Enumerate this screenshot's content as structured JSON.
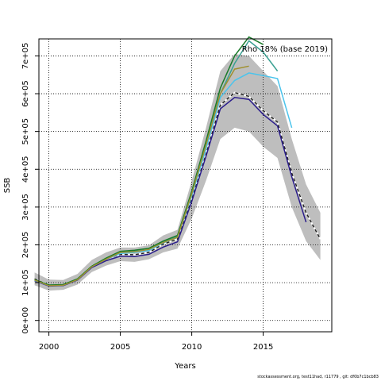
{
  "chart_data": {
    "type": "line",
    "title": "",
    "annotation": "Rho 18% (base 2019)",
    "xlabel": "Years",
    "ylabel": "SSB",
    "xlim": [
      1999.3,
      2019.8
    ],
    "ylim": [
      -30000,
      745000
    ],
    "x_ticks": [
      2000,
      2005,
      2010,
      2015
    ],
    "x_tick_labels": [
      "2000",
      "2005",
      "2010",
      "2015"
    ],
    "y_ticks": [
      0,
      100000,
      200000,
      300000,
      400000,
      500000,
      600000,
      700000
    ],
    "y_tick_labels": [
      "0e+00",
      "1e+05",
      "2e+05",
      "3e+05",
      "4e+05",
      "5e+05",
      "6e+05",
      "7e+05"
    ],
    "grid": "dotted",
    "legend": "none",
    "band": {
      "color": "#bebebe",
      "x": [
        1999,
        2000,
        2001,
        2002,
        2003,
        2004,
        2005,
        2006,
        2007,
        2008,
        2009,
        2010,
        2011,
        2012,
        2013,
        2014,
        2015,
        2016,
        2017,
        2018,
        2019
      ],
      "upper": [
        127000,
        108000,
        107000,
        123000,
        160000,
        180000,
        193000,
        193000,
        199000,
        225000,
        240000,
        370000,
        510000,
        660000,
        705000,
        700000,
        660000,
        620000,
        480000,
        360000,
        285000
      ],
      "lower": [
        93000,
        79000,
        81000,
        95000,
        128000,
        145000,
        157000,
        155000,
        162000,
        180000,
        190000,
        270000,
        370000,
        480000,
        510000,
        500000,
        460000,
        430000,
        300000,
        210000,
        160000
      ]
    },
    "series": [
      {
        "color": "#222222",
        "dashed": true,
        "width": 1.5,
        "x": [
          1999,
          2000,
          2001,
          2002,
          2003,
          2004,
          2005,
          2006,
          2007,
          2008,
          2009,
          2010,
          2011,
          2012,
          2013,
          2014,
          2015,
          2016,
          2017,
          2018,
          2019
        ],
        "values": [
          110000,
          93000,
          94000,
          109000,
          144000,
          163000,
          175000,
          174000,
          180000,
          202000,
          215000,
          320000,
          440000,
          570000,
          603000,
          593000,
          555000,
          525000,
          390000,
          285000,
          215000
        ]
      },
      {
        "color": "#2b1d8c",
        "dashed": false,
        "width": 1.5,
        "x": [
          1999,
          2000,
          2001,
          2002,
          2003,
          2004,
          2005,
          2006,
          2007,
          2008,
          2009,
          2010,
          2011,
          2012,
          2013,
          2014,
          2015,
          2016,
          2017,
          2018
        ],
        "values": [
          105000,
          91000,
          92000,
          107000,
          140000,
          158000,
          170000,
          169000,
          175000,
          194000,
          208000,
          315000,
          435000,
          560000,
          590000,
          585000,
          545000,
          515000,
          380000,
          260000
        ]
      },
      {
        "color": "#4bc4ec",
        "dashed": false,
        "width": 1.5,
        "x": [
          1999,
          2000,
          2001,
          2002,
          2003,
          2004,
          2005,
          2006,
          2007,
          2008,
          2009,
          2010,
          2011,
          2012,
          2013,
          2014,
          2015,
          2016,
          2017
        ],
        "values": [
          106000,
          92000,
          93000,
          108000,
          142000,
          162000,
          177000,
          180000,
          185000,
          205000,
          220000,
          330000,
          455000,
          590000,
          635000,
          655000,
          648000,
          640000,
          510000
        ]
      },
      {
        "color": "#3aa092",
        "dashed": false,
        "width": 1.5,
        "x": [
          1999,
          2000,
          2001,
          2002,
          2003,
          2004,
          2005,
          2006,
          2007,
          2008,
          2009,
          2010,
          2011,
          2012,
          2013,
          2014,
          2015,
          2016
        ],
        "values": [
          107000,
          93000,
          94000,
          109000,
          143000,
          163000,
          180000,
          183000,
          188000,
          208000,
          222000,
          335000,
          465000,
          600000,
          680000,
          740000,
          710000,
          660000
        ]
      },
      {
        "color": "#1a7a2a",
        "dashed": false,
        "width": 1.5,
        "x": [
          1999,
          2000,
          2001,
          2002,
          2003,
          2004,
          2005,
          2006,
          2007,
          2008,
          2009,
          2010,
          2011,
          2012,
          2013,
          2014,
          2015
        ],
        "values": [
          108000,
          94000,
          95000,
          110000,
          144000,
          165000,
          183000,
          186000,
          191000,
          210000,
          225000,
          342000,
          475000,
          615000,
          700000,
          750000,
          730000
        ]
      },
      {
        "color": "#a09030",
        "dashed": false,
        "width": 1.5,
        "x": [
          1999,
          2000,
          2001,
          2002,
          2003,
          2004,
          2005,
          2006,
          2007,
          2008,
          2009,
          2010,
          2011,
          2012,
          2013,
          2014
        ],
        "values": [
          107000,
          92000,
          93000,
          108000,
          142000,
          162000,
          180000,
          182000,
          188000,
          206000,
          220000,
          335000,
          465000,
          600000,
          665000,
          673000
        ]
      }
    ]
  },
  "footer": "stockassessment.org, test11had, r11779 ,  git: df0b7c1bcb83"
}
